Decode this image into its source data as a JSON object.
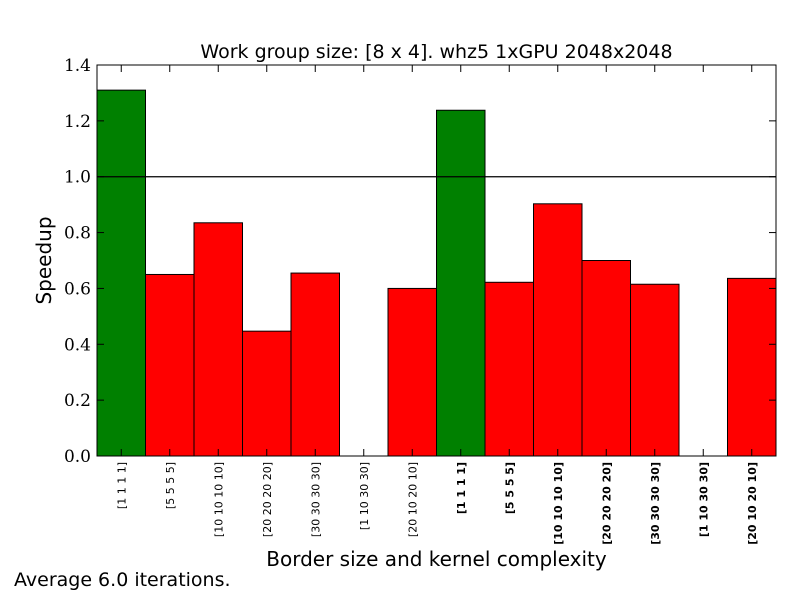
{
  "chart_data": {
    "type": "bar",
    "title": "Work group size: [8 x 4]. whz5 1xGPU 2048x2048",
    "xlabel": "Border size and kernel complexity",
    "ylabel": "Speedup",
    "ylim": [
      0,
      1.4
    ],
    "yticks": [
      "0.0",
      "0.2",
      "0.4",
      "0.6",
      "0.8",
      "1.0",
      "1.2",
      "1.4"
    ],
    "reference_line": 1.0,
    "grid": false,
    "categories": [
      "[1 1 1 1]",
      "[5 5 5 5]",
      "[10 10 10 10]",
      "[20 20 20 20]",
      "[30 30 30 30]",
      "[1 10 30 30]",
      "[20 10 20 10]",
      "[1 1 1 1]",
      "[5 5 5 5]",
      "[10 10 10 10]",
      "[20 20 20 20]",
      "[30 30 30 30]",
      "[1 10 30 30]",
      "[20 10 20 10]"
    ],
    "bold_labels": [
      false,
      false,
      false,
      false,
      false,
      false,
      false,
      true,
      true,
      true,
      true,
      true,
      true,
      true
    ],
    "values": [
      1.31,
      0.65,
      0.835,
      0.447,
      0.655,
      0.0,
      0.6,
      1.238,
      0.622,
      0.903,
      0.7,
      0.615,
      0.0,
      0.636
    ],
    "colors": [
      "#008000",
      "#ff0000",
      "#ff0000",
      "#ff0000",
      "#ff0000",
      "#ff0000",
      "#ff0000",
      "#008000",
      "#ff0000",
      "#ff0000",
      "#ff0000",
      "#ff0000",
      "#ff0000",
      "#ff0000"
    ]
  },
  "footnote": "Average 6.0 iterations."
}
